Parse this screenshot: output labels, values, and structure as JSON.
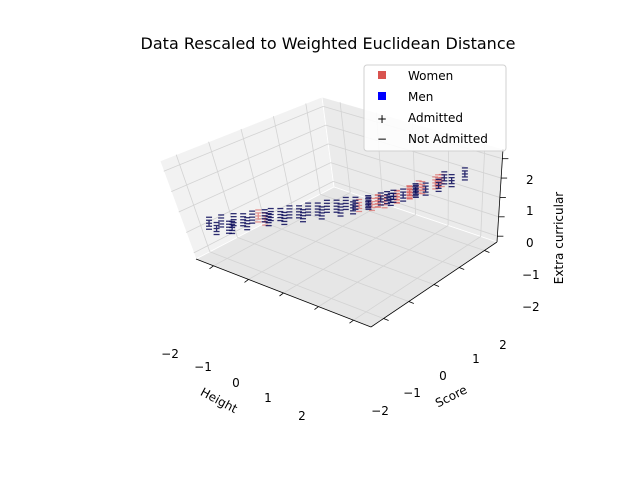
{
  "chart_data": {
    "type": "scatter",
    "projection": "3d",
    "title": "Data Rescaled to Weighted Euclidean Distance",
    "xlabel": "Height",
    "ylabel": "Score",
    "zlabel": "Extra curricular",
    "xlim": [
      -2.5,
      2.5
    ],
    "ylim": [
      -2.5,
      2.5
    ],
    "zlim": [
      -2.3,
      2.5
    ],
    "xticks": [
      "−2",
      "−1",
      "0",
      "1",
      "2"
    ],
    "yticks": [
      "−2",
      "−1",
      "0",
      "1",
      "2"
    ],
    "zticks": [
      "−2",
      "−1",
      "0",
      "1",
      "2"
    ],
    "grid": true,
    "legend": {
      "placement": "top-right",
      "entries": [
        {
          "label": "Women",
          "marker": "square",
          "color": "#d9534f"
        },
        {
          "label": "Men",
          "marker": "square",
          "color": "#0000ff"
        },
        {
          "label": "Admitted",
          "marker": "+",
          "color": "#000000"
        },
        {
          "label": "Not Admitted",
          "marker": "−",
          "color": "#000000"
        }
      ]
    },
    "colors": {
      "women": "#d9534f",
      "men": "#0000ff",
      "dense": "#0a0a5a"
    },
    "series": [
      {
        "name": "Women",
        "points": [
          {
            "x": 0.8,
            "y": 0.6,
            "z": 0.3,
            "admitted": true
          },
          {
            "x": 1.0,
            "y": 0.8,
            "z": 0.5,
            "admitted": true
          },
          {
            "x": 1.2,
            "y": 1.0,
            "z": 0.7,
            "admitted": true
          },
          {
            "x": 1.4,
            "y": 1.2,
            "z": 0.9,
            "admitted": true
          },
          {
            "x": 1.6,
            "y": 1.4,
            "z": 1.1,
            "admitted": true
          },
          {
            "x": 0.9,
            "y": 0.9,
            "z": 0.4,
            "admitted": false
          },
          {
            "x": 1.1,
            "y": 1.1,
            "z": 0.6,
            "admitted": false
          },
          {
            "x": 1.3,
            "y": 0.9,
            "z": 0.8,
            "admitted": true
          },
          {
            "x": 0.6,
            "y": 0.4,
            "z": 0.2,
            "admitted": true
          },
          {
            "x": 0.5,
            "y": 0.7,
            "z": 0.1,
            "admitted": false
          },
          {
            "x": 1.5,
            "y": 1.6,
            "z": 1.0,
            "admitted": true
          },
          {
            "x": 0.7,
            "y": 0.5,
            "z": 0.35,
            "admitted": true
          },
          {
            "x": 1.2,
            "y": 1.3,
            "z": 0.75,
            "admitted": false
          },
          {
            "x": 1.7,
            "y": 1.5,
            "z": 1.2,
            "admitted": true
          },
          {
            "x": -1.4,
            "y": -1.2,
            "z": -0.4,
            "admitted": true
          },
          {
            "x": -1.1,
            "y": -1.3,
            "z": -0.3,
            "admitted": true
          },
          {
            "x": 0.3,
            "y": 0.3,
            "z": 0.05,
            "admitted": true
          }
        ]
      },
      {
        "name": "Men",
        "points": [
          {
            "x": -2.0,
            "y": -1.8,
            "z": -0.6,
            "admitted": false
          },
          {
            "x": -1.8,
            "y": -1.6,
            "z": -0.55,
            "admitted": false
          },
          {
            "x": -1.6,
            "y": -1.5,
            "z": -0.5,
            "admitted": false
          },
          {
            "x": -1.5,
            "y": -1.3,
            "z": -0.45,
            "admitted": false
          },
          {
            "x": -1.3,
            "y": -1.1,
            "z": -0.4,
            "admitted": false
          },
          {
            "x": -1.2,
            "y": -1.0,
            "z": -0.35,
            "admitted": false
          },
          {
            "x": -1.0,
            "y": -0.9,
            "z": -0.3,
            "admitted": false
          },
          {
            "x": -0.9,
            "y": -0.7,
            "z": -0.25,
            "admitted": false
          },
          {
            "x": -0.7,
            "y": -0.6,
            "z": -0.2,
            "admitted": false
          },
          {
            "x": -0.6,
            "y": -0.4,
            "z": -0.15,
            "admitted": false
          },
          {
            "x": -0.4,
            "y": -0.3,
            "z": -0.1,
            "admitted": false
          },
          {
            "x": -0.3,
            "y": -0.1,
            "z": -0.05,
            "admitted": false
          },
          {
            "x": -0.1,
            "y": 0.0,
            "z": 0.0,
            "admitted": false
          },
          {
            "x": 0.0,
            "y": 0.2,
            "z": 0.05,
            "admitted": false
          },
          {
            "x": 0.2,
            "y": 0.3,
            "z": 0.1,
            "admitted": false
          },
          {
            "x": 0.4,
            "y": 0.5,
            "z": 0.15,
            "admitted": false
          },
          {
            "x": 0.6,
            "y": 0.7,
            "z": 0.25,
            "admitted": true
          },
          {
            "x": 0.8,
            "y": 0.9,
            "z": 0.35,
            "admitted": true
          },
          {
            "x": 1.0,
            "y": 1.0,
            "z": 0.45,
            "admitted": true
          },
          {
            "x": 1.2,
            "y": 1.2,
            "z": 0.6,
            "admitted": true
          },
          {
            "x": 1.4,
            "y": 1.3,
            "z": 0.75,
            "admitted": true
          },
          {
            "x": 1.6,
            "y": 1.5,
            "z": 0.9,
            "admitted": true
          },
          {
            "x": 1.8,
            "y": 1.7,
            "z": 1.1,
            "admitted": true
          },
          {
            "x": 2.0,
            "y": 1.9,
            "z": 1.4,
            "admitted": true
          },
          {
            "x": -1.7,
            "y": -1.9,
            "z": -0.65,
            "admitted": false
          },
          {
            "x": -1.4,
            "y": -1.6,
            "z": -0.5,
            "admitted": false
          },
          {
            "x": -1.1,
            "y": -1.2,
            "z": -0.4,
            "admitted": false
          },
          {
            "x": -0.8,
            "y": -1.0,
            "z": -0.3,
            "admitted": false
          },
          {
            "x": -0.5,
            "y": -0.7,
            "z": -0.2,
            "admitted": false
          },
          {
            "x": -0.2,
            "y": -0.4,
            "z": -0.1,
            "admitted": false
          },
          {
            "x": 0.1,
            "y": -0.1,
            "z": 0.0,
            "admitted": false
          },
          {
            "x": 0.3,
            "y": 0.1,
            "z": 0.08,
            "admitted": true
          },
          {
            "x": 0.5,
            "y": 0.4,
            "z": 0.2,
            "admitted": true
          },
          {
            "x": 0.7,
            "y": 0.8,
            "z": 0.3,
            "admitted": true
          },
          {
            "x": 0.9,
            "y": 0.7,
            "z": 0.4,
            "admitted": true
          },
          {
            "x": 1.1,
            "y": 1.3,
            "z": 0.55,
            "admitted": true
          },
          {
            "x": -2.2,
            "y": -2.0,
            "z": -0.7,
            "admitted": true
          },
          {
            "x": -1.9,
            "y": -2.1,
            "z": -0.7,
            "admitted": true
          },
          {
            "x": -1.6,
            "y": -1.9,
            "z": -0.6,
            "admitted": true
          },
          {
            "x": 1.5,
            "y": 1.8,
            "z": 1.0,
            "admitted": true
          }
        ]
      }
    ]
  }
}
